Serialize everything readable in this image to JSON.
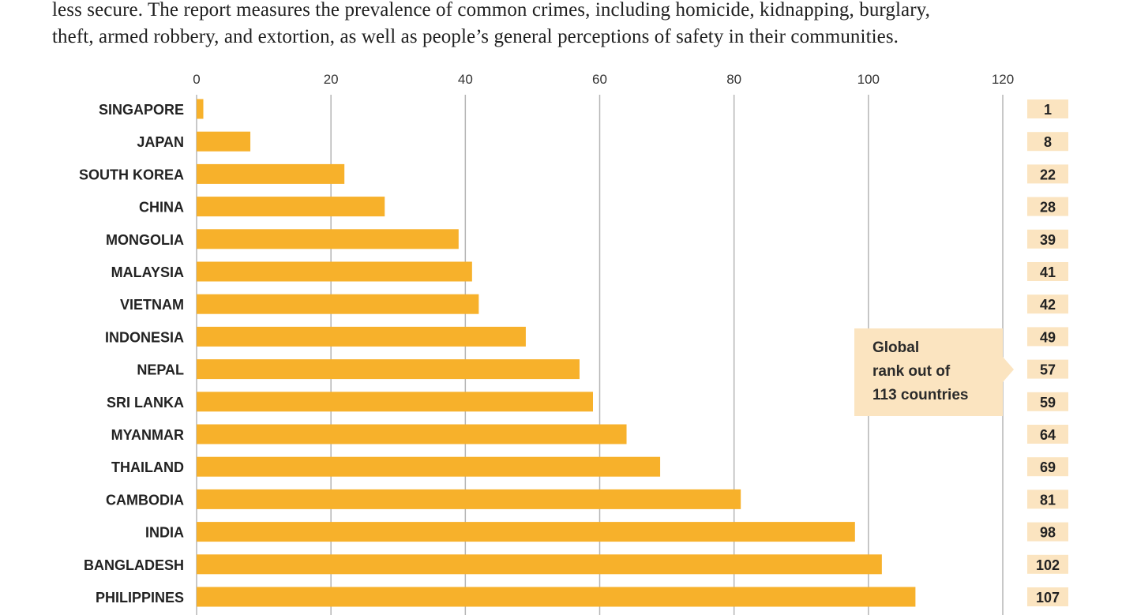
{
  "intro": {
    "line1": "less secure. The report measures the prevalence of common crimes, including homicide, kidnapping, burglary,",
    "line2": "theft, armed robbery, and extortion, as well as people’s general perceptions of safety in their communities."
  },
  "callout": {
    "line1": "Global",
    "line2": "rank out of",
    "line3": "113 countries"
  },
  "colors": {
    "bar": "#f7b12b",
    "rank_box": "#fbe4c0",
    "grid": "#b5b5b5"
  },
  "chart_data": {
    "type": "bar",
    "orientation": "horizontal",
    "categories": [
      "SINGAPORE",
      "JAPAN",
      "SOUTH KOREA",
      "CHINA",
      "MONGOLIA",
      "MALAYSIA",
      "VIETNAM",
      "INDONESIA",
      "NEPAL",
      "SRI LANKA",
      "MYANMAR",
      "THAILAND",
      "CAMBODIA",
      "INDIA",
      "BANGLADESH",
      "PHILIPPINES"
    ],
    "values": [
      1,
      8,
      22,
      28,
      39,
      41,
      42,
      49,
      57,
      59,
      64,
      69,
      81,
      98,
      102,
      107
    ],
    "rank_labels": [
      "1",
      "8",
      "22",
      "28",
      "39",
      "41",
      "42",
      "49",
      "57",
      "59",
      "64",
      "69",
      "81",
      "98",
      "102",
      "107"
    ],
    "xticks": [
      "0",
      "20",
      "40",
      "60",
      "80",
      "100",
      "120"
    ],
    "xlim": [
      0,
      120
    ],
    "grid": true,
    "axis_position": "top"
  }
}
